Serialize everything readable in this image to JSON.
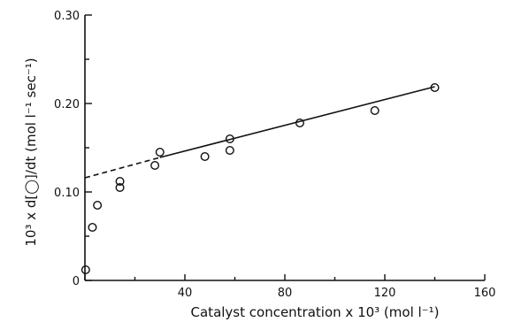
{
  "chart_data": {
    "type": "scatter",
    "xlabel": "Catalyst concentration x 10³ (mol l⁻¹)",
    "ylabel": "10³ x d[◯]/dt (mol l⁻¹ sec⁻¹)",
    "xlim": [
      0,
      160
    ],
    "ylim": [
      0,
      0.3
    ],
    "xticks": [
      0,
      40,
      80,
      120,
      160
    ],
    "xtick_labels": [
      "",
      "40",
      "80",
      "120",
      "160"
    ],
    "yticks": [
      0,
      0.1,
      0.2,
      0.3
    ],
    "ytick_labels": [
      "0",
      "0.10",
      "0.20",
      "0.30"
    ],
    "grid": false,
    "points": [
      {
        "x": 0.3,
        "y": 0.012
      },
      {
        "x": 3,
        "y": 0.06
      },
      {
        "x": 5,
        "y": 0.085
      },
      {
        "x": 14,
        "y": 0.105
      },
      {
        "x": 14,
        "y": 0.112
      },
      {
        "x": 28,
        "y": 0.13
      },
      {
        "x": 30,
        "y": 0.145
      },
      {
        "x": 48,
        "y": 0.14
      },
      {
        "x": 58,
        "y": 0.147
      },
      {
        "x": 58,
        "y": 0.16
      },
      {
        "x": 86,
        "y": 0.178
      },
      {
        "x": 116,
        "y": 0.192
      },
      {
        "x": 140,
        "y": 0.218
      }
    ],
    "fit_line": {
      "dashed_segment": [
        [
          0,
          0.116
        ],
        [
          30,
          0.139
        ]
      ],
      "solid_segment": [
        [
          30,
          0.139
        ],
        [
          140,
          0.219
        ]
      ]
    }
  }
}
